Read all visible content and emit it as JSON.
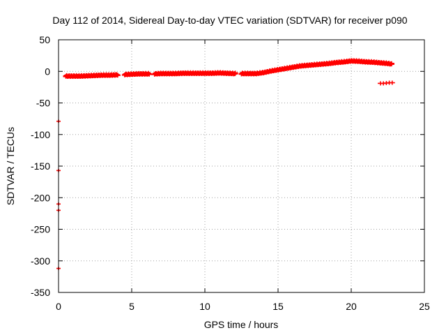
{
  "chart_data": {
    "type": "scatter",
    "title": "Day 112 of 2014, Sidereal Day-to-day VTEC variation (SDTVAR) for receiver p090",
    "xlabel": "GPS time / hours",
    "ylabel": "SDTVAR / TECUs",
    "xlim": [
      0,
      25
    ],
    "ylim": [
      -350,
      50
    ],
    "xticks": [
      0,
      5,
      10,
      15,
      20,
      25
    ],
    "yticks": [
      50,
      0,
      -50,
      -100,
      -150,
      -200,
      -250,
      -300,
      -350
    ],
    "grid": true,
    "series": [
      {
        "color": "#ff0000",
        "marker": "plus",
        "main_trend": [
          [
            0.5,
            -7
          ],
          [
            1,
            -7
          ],
          [
            1.5,
            -7
          ],
          [
            2,
            -6.5
          ],
          [
            2.5,
            -6
          ],
          [
            3,
            -5.5
          ],
          [
            3.5,
            -5.5
          ],
          [
            4,
            -5
          ],
          [
            4.5,
            -4.5
          ],
          [
            5,
            -4
          ],
          [
            5.5,
            -3.5
          ],
          [
            6,
            -3.5
          ],
          [
            6.5,
            -3.5
          ],
          [
            7,
            -3
          ],
          [
            7.5,
            -3
          ],
          [
            8,
            -3
          ],
          [
            8.5,
            -2.5
          ],
          [
            9,
            -2.5
          ],
          [
            9.5,
            -2.5
          ],
          [
            10,
            -2.5
          ],
          [
            10.5,
            -2.5
          ],
          [
            11,
            -2
          ],
          [
            11.5,
            -2.5
          ],
          [
            12,
            -3
          ],
          [
            12.5,
            -3
          ],
          [
            13,
            -3
          ],
          [
            13.5,
            -3
          ],
          [
            14,
            -1.5
          ],
          [
            14.5,
            1
          ],
          [
            15,
            3
          ],
          [
            15.5,
            5
          ],
          [
            16,
            7
          ],
          [
            16.5,
            9
          ],
          [
            17,
            10
          ],
          [
            17.5,
            11
          ],
          [
            18,
            12
          ],
          [
            18.5,
            13
          ],
          [
            19,
            14.5
          ],
          [
            19.5,
            15.5
          ],
          [
            20,
            17
          ],
          [
            20.5,
            16.5
          ],
          [
            21,
            15.5
          ],
          [
            21.5,
            15
          ],
          [
            22,
            14
          ],
          [
            22.5,
            13
          ],
          [
            22.8,
            12
          ]
        ],
        "gaps": [
          [
            4.1,
            4.5
          ],
          [
            6.2,
            6.5
          ],
          [
            12.1,
            12.5
          ]
        ],
        "outliers": [
          [
            22.0,
            -19
          ],
          [
            22.2,
            -19
          ],
          [
            22.4,
            -18.5
          ],
          [
            22.6,
            -18
          ],
          [
            22.8,
            -18
          ],
          [
            0,
            -79
          ],
          [
            0,
            -157
          ],
          [
            0,
            -210
          ],
          [
            0,
            -220
          ],
          [
            0,
            -312
          ]
        ]
      }
    ]
  }
}
